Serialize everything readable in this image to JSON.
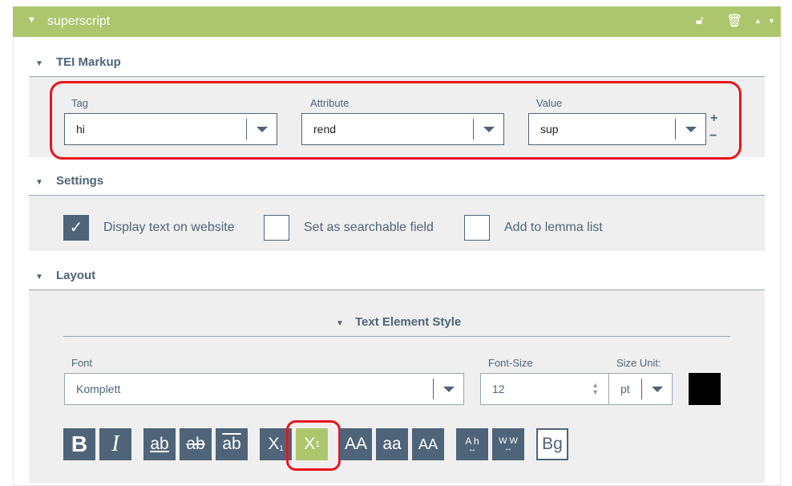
{
  "header": {
    "title": "superscript",
    "color": "#adc66e"
  },
  "tei": {
    "heading": "TEI Markup",
    "tag_label": "Tag",
    "tag_value": "hi",
    "attribute_label": "Attribute",
    "attribute_value": "rend",
    "value_label": "Value",
    "value_value": "sup",
    "add": "+",
    "remove": "−"
  },
  "settings": {
    "heading": "Settings",
    "items": [
      {
        "label": "Display text on website",
        "checked": true
      },
      {
        "label": "Set as searchable field",
        "checked": false
      },
      {
        "label": "Add to lemma list",
        "checked": false
      }
    ]
  },
  "layout": {
    "heading": "Layout",
    "style_heading": "Text Element Style",
    "font_label": "Font",
    "font_value": "Komplett",
    "size_label": "Font-Size",
    "size_value": "12",
    "unit_label": "Size Unit:",
    "unit_value": "pt",
    "color": "#000000",
    "buttons": [
      {
        "name": "bold",
        "label": "B"
      },
      {
        "name": "italic",
        "label": "I"
      },
      {
        "name": "underline",
        "label": "ab"
      },
      {
        "name": "strikethrough",
        "label": "ab"
      },
      {
        "name": "overline",
        "label": "ab"
      },
      {
        "name": "subscript",
        "label": "X"
      },
      {
        "name": "superscript",
        "label": "X",
        "sup": "1",
        "active": true
      },
      {
        "name": "uppercase",
        "label": "AA"
      },
      {
        "name": "lowercase",
        "label": "aa"
      },
      {
        "name": "small-caps",
        "label": "AA"
      },
      {
        "name": "letter-spacing",
        "label": "A h"
      },
      {
        "name": "word-spacing",
        "label": "W W"
      },
      {
        "name": "background",
        "label": "Bg"
      }
    ]
  }
}
